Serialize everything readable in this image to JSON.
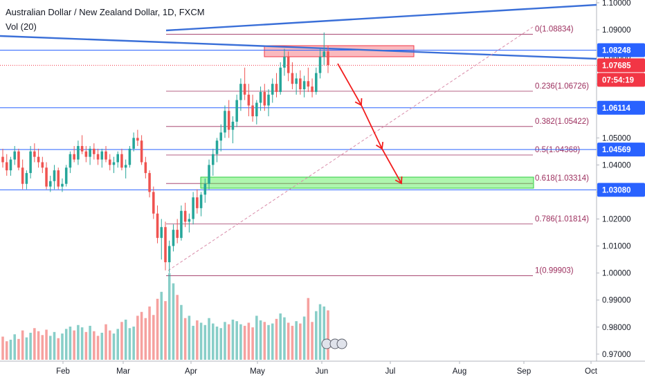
{
  "chart_data": {
    "type": "candlestick",
    "title": "Australian Dollar / New Zealand Dollar, 1D, FXCM",
    "indicator": "Vol (20)",
    "ylim": [
      0.965,
      1.104
    ],
    "y_ticks": [
      "1.10000",
      "1.09000",
      "1.08000",
      "1.07000",
      "1.06000",
      "1.05000",
      "1.04000",
      "1.03000",
      "1.02000",
      "1.01000",
      "1.00000",
      "0.99000",
      "0.98000",
      "0.97000"
    ],
    "x_ticks": [
      "Feb",
      "Mar",
      "Apr",
      "May",
      "Jun",
      "Jul",
      "Aug",
      "Sep",
      "Oct"
    ],
    "price_tags": [
      {
        "label": "1.08248",
        "value": 1.08248,
        "color": "#2962ff"
      },
      {
        "label": "1.07685",
        "value": 1.07685,
        "color": "#f23645"
      },
      {
        "label": "07:54:19",
        "value": 1.07685,
        "color": "#f23645"
      },
      {
        "label": "1.06114",
        "value": 1.06114,
        "color": "#2962ff"
      },
      {
        "label": "1.04569",
        "value": 1.04569,
        "color": "#2962ff"
      },
      {
        "label": "1.03080",
        "value": 1.0308,
        "color": "#2962ff"
      }
    ],
    "fib_levels": [
      {
        "label": "0(1.08834)",
        "value": 1.08834
      },
      {
        "label": "0.236(1.06726)",
        "value": 1.06726
      },
      {
        "label": "0.382(1.05422)",
        "value": 1.05422
      },
      {
        "label": "0.5(1.04368)",
        "value": 1.04368
      },
      {
        "label": "0.618(1.03314)",
        "value": 1.03314
      },
      {
        "label": "0.786(1.01814)",
        "value": 1.01814
      },
      {
        "label": "1(0.99903)",
        "value": 0.99903
      }
    ],
    "horizontal_lines": [
      1.08248,
      1.06114,
      1.04569,
      1.0308
    ],
    "candles": [
      [
        1.043,
        1.046,
        1.039,
        1.041
      ],
      [
        1.041,
        1.044,
        1.036,
        1.038
      ],
      [
        1.038,
        1.043,
        1.036,
        1.042
      ],
      [
        1.042,
        1.047,
        1.04,
        1.045
      ],
      [
        1.045,
        1.046,
        1.038,
        1.039
      ],
      [
        1.039,
        1.042,
        1.031,
        1.033
      ],
      [
        1.033,
        1.038,
        1.031,
        1.037
      ],
      [
        1.037,
        1.047,
        1.035,
        1.045
      ],
      [
        1.045,
        1.048,
        1.041,
        1.043
      ],
      [
        1.043,
        1.046,
        1.039,
        1.041
      ],
      [
        1.041,
        1.043,
        1.037,
        1.039
      ],
      [
        1.039,
        1.041,
        1.031,
        1.032
      ],
      [
        1.032,
        1.036,
        1.03,
        1.034
      ],
      [
        1.034,
        1.04,
        1.031,
        1.038
      ],
      [
        1.038,
        1.039,
        1.031,
        1.032
      ],
      [
        1.032,
        1.035,
        1.03,
        1.033
      ],
      [
        1.033,
        1.04,
        1.032,
        1.039
      ],
      [
        1.039,
        1.045,
        1.037,
        1.044
      ],
      [
        1.044,
        1.047,
        1.041,
        1.042
      ],
      [
        1.042,
        1.049,
        1.04,
        1.047
      ],
      [
        1.047,
        1.051,
        1.044,
        1.045
      ],
      [
        1.045,
        1.047,
        1.041,
        1.043
      ],
      [
        1.043,
        1.047,
        1.04,
        1.046
      ],
      [
        1.046,
        1.048,
        1.042,
        1.044
      ],
      [
        1.044,
        1.046,
        1.04,
        1.042
      ],
      [
        1.042,
        1.046,
        1.039,
        1.045
      ],
      [
        1.045,
        1.047,
        1.041,
        1.042
      ],
      [
        1.042,
        1.044,
        1.038,
        1.04
      ],
      [
        1.04,
        1.043,
        1.037,
        1.041
      ],
      [
        1.041,
        1.045,
        1.039,
        1.044
      ],
      [
        1.044,
        1.046,
        1.038,
        1.039
      ],
      [
        1.039,
        1.042,
        1.035,
        1.04
      ],
      [
        1.04,
        1.047,
        1.039,
        1.046
      ],
      [
        1.046,
        1.052,
        1.045,
        1.05
      ],
      [
        1.05,
        1.053,
        1.047,
        1.049
      ],
      [
        1.049,
        1.051,
        1.04,
        1.041
      ],
      [
        1.041,
        1.043,
        1.035,
        1.037
      ],
      [
        1.037,
        1.038,
        1.028,
        1.03
      ],
      [
        1.03,
        1.032,
        1.02,
        1.022
      ],
      [
        1.022,
        1.025,
        1.011,
        1.013
      ],
      [
        1.013,
        1.02,
        1.005,
        1.017
      ],
      [
        1.017,
        1.019,
        1.001,
        1.004
      ],
      [
        1.004,
        1.012,
        1.0,
        1.01
      ],
      [
        1.01,
        1.018,
        1.008,
        1.016
      ],
      [
        1.016,
        1.02,
        1.011,
        1.013
      ],
      [
        1.013,
        1.025,
        1.012,
        1.023
      ],
      [
        1.023,
        1.026,
        1.017,
        1.019
      ],
      [
        1.019,
        1.022,
        1.015,
        1.02
      ],
      [
        1.02,
        1.03,
        1.018,
        1.028
      ],
      [
        1.028,
        1.031,
        1.022,
        1.024
      ],
      [
        1.024,
        1.03,
        1.021,
        1.029
      ],
      [
        1.029,
        1.035,
        1.026,
        1.033
      ],
      [
        1.033,
        1.042,
        1.031,
        1.04
      ],
      [
        1.04,
        1.046,
        1.036,
        1.044
      ],
      [
        1.044,
        1.05,
        1.041,
        1.049
      ],
      [
        1.049,
        1.055,
        1.045,
        1.052
      ],
      [
        1.052,
        1.062,
        1.05,
        1.06
      ],
      [
        1.06,
        1.064,
        1.05,
        1.053
      ],
      [
        1.053,
        1.058,
        1.048,
        1.056
      ],
      [
        1.056,
        1.066,
        1.054,
        1.064
      ],
      [
        1.064,
        1.072,
        1.06,
        1.07
      ],
      [
        1.07,
        1.076,
        1.064,
        1.066
      ],
      [
        1.066,
        1.07,
        1.058,
        1.062
      ],
      [
        1.062,
        1.066,
        1.056,
        1.058
      ],
      [
        1.058,
        1.064,
        1.055,
        1.063
      ],
      [
        1.063,
        1.069,
        1.06,
        1.067
      ],
      [
        1.067,
        1.07,
        1.06,
        1.062
      ],
      [
        1.062,
        1.068,
        1.058,
        1.066
      ],
      [
        1.066,
        1.072,
        1.063,
        1.07
      ],
      [
        1.07,
        1.074,
        1.065,
        1.067
      ],
      [
        1.067,
        1.078,
        1.066,
        1.076
      ],
      [
        1.076,
        1.083,
        1.073,
        1.08
      ],
      [
        1.08,
        1.082,
        1.071,
        1.074
      ],
      [
        1.074,
        1.078,
        1.068,
        1.07
      ],
      [
        1.07,
        1.074,
        1.066,
        1.072
      ],
      [
        1.072,
        1.075,
        1.066,
        1.068
      ],
      [
        1.068,
        1.073,
        1.065,
        1.071
      ],
      [
        1.071,
        1.076,
        1.067,
        1.069
      ],
      [
        1.069,
        1.072,
        1.065,
        1.067
      ],
      [
        1.067,
        1.076,
        1.066,
        1.074
      ],
      [
        1.074,
        1.083,
        1.072,
        1.08
      ],
      [
        1.08,
        1.089,
        1.077,
        1.082
      ],
      [
        1.082,
        1.084,
        1.074,
        1.0769
      ]
    ],
    "volumes": [
      30,
      24,
      26,
      33,
      27,
      38,
      29,
      35,
      41,
      37,
      32,
      39,
      31,
      36,
      28,
      34,
      40,
      43,
      38,
      45,
      42,
      36,
      44,
      37,
      31,
      35,
      46,
      38,
      34,
      40,
      49,
      52,
      41,
      43,
      57,
      62,
      54,
      69,
      58,
      79,
      88,
      76,
      112,
      99,
      84,
      71,
      54,
      57,
      44,
      51,
      48,
      45,
      54,
      47,
      43,
      41,
      49,
      46,
      52,
      50,
      46,
      44,
      48,
      42,
      57,
      51,
      49,
      45,
      47,
      53,
      60,
      55,
      48,
      44,
      50,
      47,
      56,
      80,
      49,
      63,
      72,
      69,
      64
    ],
    "volume_colors_up": [
      false,
      false,
      true,
      true,
      false,
      false,
      true,
      true,
      false,
      false,
      false,
      false,
      true,
      true,
      false,
      true,
      true,
      true,
      false,
      true,
      true,
      false,
      true,
      false,
      false,
      true,
      false,
      false,
      true,
      true,
      false,
      true,
      true,
      true,
      false,
      false,
      false,
      false,
      false,
      false,
      true,
      false,
      true,
      true,
      false,
      true,
      false,
      true,
      true,
      false,
      true,
      true,
      true,
      true,
      true,
      true,
      true,
      false,
      true,
      true,
      true,
      false,
      false,
      false,
      true,
      true,
      false,
      true,
      true,
      false,
      true,
      true,
      false,
      false,
      true,
      false,
      true,
      false,
      false,
      true,
      true,
      true,
      false
    ]
  }
}
